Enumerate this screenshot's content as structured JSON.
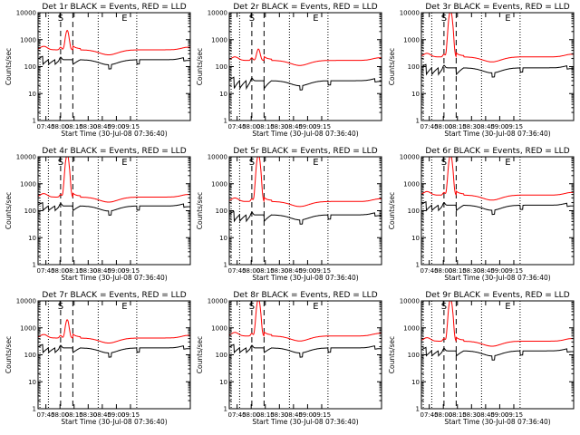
{
  "chart_data": {
    "type": "line",
    "panel_count": 9,
    "layout": "3x3 grid",
    "scale": {
      "y": "log",
      "ylim": [
        1,
        10000
      ]
    },
    "series_colors": {
      "events": "#000000",
      "lld": "#ff0000"
    },
    "xlabel": "Start Time (30-Jul-08 07:36:40)",
    "ylabel": "Counts/sec",
    "xlim_minutes": [
      0,
      162
    ],
    "x_tick_labels": [
      "07:45",
      "08:00",
      "08:15",
      "08:30",
      "08:45",
      "09:00",
      "09:15"
    ],
    "x_tick_minutes": [
      8.33,
      23.33,
      38.33,
      53.33,
      68.33,
      83.33,
      98.33
    ],
    "y_tick_labels": [
      "1",
      "10",
      "100",
      "1000",
      "10000"
    ],
    "y_tick_values": [
      1,
      10,
      100,
      1000,
      10000
    ],
    "dotted_lines_minutes": [
      2,
      11,
      64,
      105
    ],
    "dashed_lines_minutes": [
      24,
      37
    ],
    "markers": [
      {
        "label": "S",
        "minute": 24
      },
      {
        "label": "E",
        "minute": 92
      }
    ],
    "panels": [
      {
        "title": "Det 1r BLACK = Events, RED = LLD",
        "events_base": 180,
        "lld_base": 420,
        "events_low": 120,
        "peak": 2200
      },
      {
        "title": "Det 2r BLACK = Events, RED = LLD",
        "events_base": 30,
        "lld_base": 170,
        "events_low": 15,
        "peak": 450
      },
      {
        "title": "Det 3r BLACK = Events, RED = LLD",
        "events_base": 90,
        "lld_base": 230,
        "events_low": 50,
        "peak": 12000
      },
      {
        "title": "Det 4r BLACK = Events, RED = LLD",
        "events_base": 150,
        "lld_base": 320,
        "events_low": 100,
        "peak": 12000
      },
      {
        "title": "Det 5r BLACK = Events, RED = LLD",
        "events_base": 70,
        "lld_base": 220,
        "events_low": 40,
        "peak": 12000
      },
      {
        "title": "Det 6r BLACK = Events, RED = LLD",
        "events_base": 160,
        "lld_base": 380,
        "events_low": 100,
        "peak": 12000
      },
      {
        "title": "Det 7r BLACK = Events, RED = LLD",
        "events_base": 180,
        "lld_base": 420,
        "events_low": 120,
        "peak": 2000
      },
      {
        "title": "Det 8r BLACK = Events, RED = LLD",
        "events_base": 180,
        "lld_base": 500,
        "events_low": 120,
        "peak": 12000
      },
      {
        "title": "Det 9r BLACK = Events, RED = LLD",
        "events_base": 140,
        "lld_base": 320,
        "events_low": 90,
        "peak": 12000
      }
    ]
  }
}
